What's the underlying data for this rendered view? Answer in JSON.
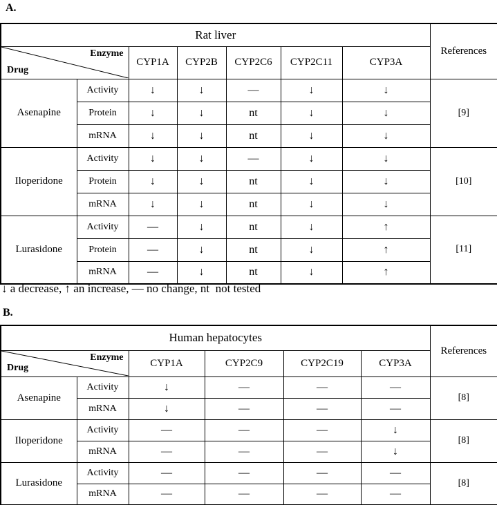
{
  "page": {
    "background": "#ffffff",
    "text_color": "#000000",
    "border_color": "#000000"
  },
  "symbols": {
    "decrease": "↓",
    "increase": "↑",
    "no_change": "—",
    "not_tested": "nt"
  },
  "panel_a": {
    "label": "A.",
    "table": {
      "title": "Rat liver",
      "references_header": "References",
      "corner": {
        "top_right": "Enzyme",
        "bottom_left": "Drug"
      },
      "enzyme_columns": [
        "CYP1A",
        "CYP2B",
        "CYP2C6",
        "CYP2C11",
        "CYP3A"
      ],
      "rows": [
        {
          "drug": "Asenapine",
          "reference": "[9]",
          "measures": [
            {
              "label": "Activity",
              "values": [
                "↓",
                "↓",
                "—",
                "↓",
                "↓"
              ]
            },
            {
              "label": "Protein",
              "values": [
                "↓",
                "↓",
                "nt",
                "↓",
                "↓"
              ]
            },
            {
              "label": "mRNA",
              "values": [
                "↓",
                "↓",
                "nt",
                "↓",
                "↓"
              ]
            }
          ]
        },
        {
          "drug": "Iloperidone",
          "reference": "[10]",
          "measures": [
            {
              "label": "Activity",
              "values": [
                "↓",
                "↓",
                "—",
                "↓",
                "↓"
              ]
            },
            {
              "label": "Protein",
              "values": [
                "↓",
                "↓",
                "nt",
                "↓",
                "↓"
              ]
            },
            {
              "label": "mRNA",
              "values": [
                "↓",
                "↓",
                "nt",
                "↓",
                "↓"
              ]
            }
          ]
        },
        {
          "drug": "Lurasidone",
          "reference": "[11]",
          "measures": [
            {
              "label": "Activity",
              "values": [
                "—",
                "↓",
                "nt",
                "↓",
                "↑"
              ]
            },
            {
              "label": "Protein",
              "values": [
                "—",
                "↓",
                "nt",
                "↓",
                "↑"
              ]
            },
            {
              "label": "mRNA",
              "values": [
                "—",
                "↓",
                "nt",
                "↓",
                "↑"
              ]
            }
          ]
        }
      ]
    },
    "footnote": "↓ a decrease, ↑ an increase, — no change, nt  not tested"
  },
  "panel_b": {
    "label": "B.",
    "table": {
      "title": "Human hepatocytes",
      "references_header": "References",
      "corner": {
        "top_right": "Enzyme",
        "bottom_left": "Drug"
      },
      "enzyme_columns": [
        "CYP1A",
        "CYP2C9",
        "CYP2C19",
        "CYP3A"
      ],
      "rows": [
        {
          "drug": "Asenapine",
          "reference": "[8]",
          "measures": [
            {
              "label": "Activity",
              "values": [
                "↓",
                "—",
                "—",
                "—"
              ]
            },
            {
              "label": "mRNA",
              "values": [
                "↓",
                "—",
                "—",
                "—"
              ]
            }
          ]
        },
        {
          "drug": "Iloperidone",
          "reference": "[8]",
          "measures": [
            {
              "label": "Activity",
              "values": [
                "—",
                "—",
                "—",
                "↓"
              ]
            },
            {
              "label": "mRNA",
              "values": [
                "—",
                "—",
                "—",
                "↓"
              ]
            }
          ]
        },
        {
          "drug": "Lurasidone",
          "reference": "[8]",
          "measures": [
            {
              "label": "Activity",
              "values": [
                "—",
                "—",
                "—",
                "—"
              ]
            },
            {
              "label": "mRNA",
              "values": [
                "—",
                "—",
                "—",
                "—"
              ]
            }
          ]
        }
      ]
    }
  }
}
